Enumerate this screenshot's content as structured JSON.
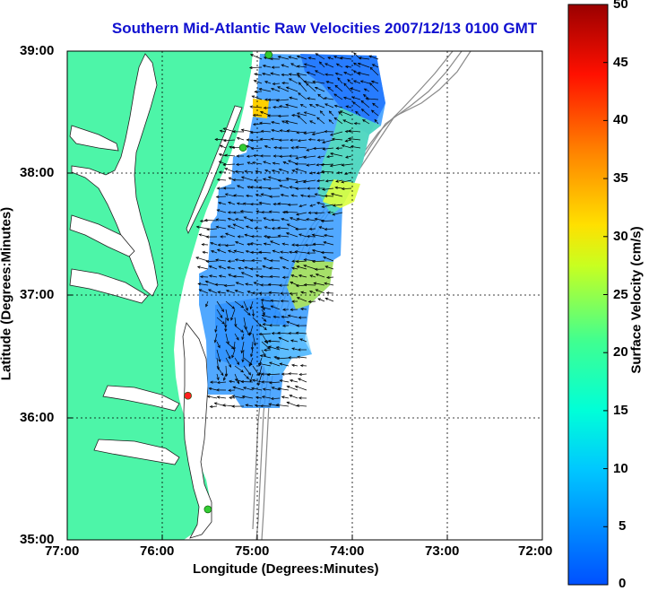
{
  "title": "Southern Mid-Atlantic Raw Velocities 2007/12/13 0100 GMT",
  "xlabel": "Longitude (Degrees:Minutes)",
  "ylabel": "Latitude (Degrees:Minutes)",
  "x_ticks": [
    "77:00",
    "76:00",
    "75:00",
    "74:00",
    "73:00",
    "72:00"
  ],
  "y_ticks": [
    "39:00",
    "38:00",
    "37:00",
    "36:00",
    "35:00"
  ],
  "colorbar": {
    "label": "Surface Velocity (cm/s)",
    "ticks": [
      "50",
      "45",
      "40",
      "35",
      "30",
      "25",
      "20",
      "15",
      "10",
      "5",
      "0"
    ],
    "range": [
      0,
      50
    ]
  },
  "colors": {
    "land": "#4df5a8",
    "ocean": "#ffffff",
    "title": "#1010d0",
    "bathymetry": "#8a8a8a"
  },
  "stations": [
    {
      "lon": -74.88,
      "lat": 38.97,
      "color": "#33cc33"
    },
    {
      "lon": -75.15,
      "lat": 38.21,
      "color": "#33cc33"
    },
    {
      "lon": -75.73,
      "lat": 36.18,
      "color": "#ff2020"
    },
    {
      "lon": -75.52,
      "lat": 35.25,
      "color": "#33cc33"
    }
  ]
}
